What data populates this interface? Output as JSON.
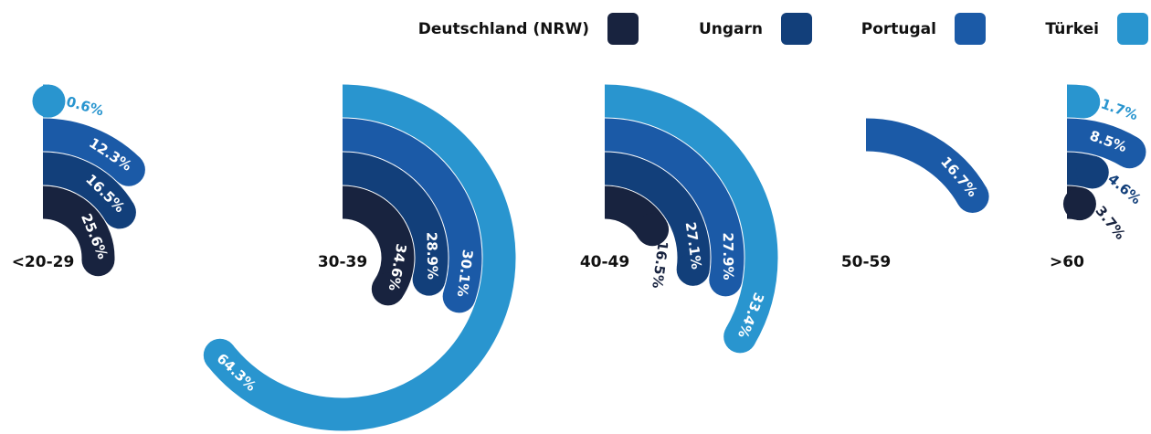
{
  "chart_data": {
    "type": "radial_bar",
    "categories": [
      "<20-29",
      "30-39",
      "40-49",
      "50-59",
      ">60"
    ],
    "series": [
      {
        "name": "Deutschland (NRW)",
        "color": "#18233f",
        "values": [
          25.6,
          34.6,
          16.5,
          null,
          3.7
        ],
        "value_labels": [
          "25.6%",
          "34.6%",
          "16.5%",
          null,
          "3.7%"
        ]
      },
      {
        "name": "Ungarn",
        "color": "#123f7a",
        "values": [
          16.5,
          28.9,
          27.1,
          null,
          4.6
        ],
        "value_labels": [
          "16.5%",
          "28.9%",
          "27.1%",
          null,
          "4.6%"
        ]
      },
      {
        "name": "Portugal",
        "color": "#1b5aa7",
        "values": [
          12.3,
          30.1,
          27.9,
          16.7,
          8.5
        ],
        "value_labels": [
          "12.3%",
          "30.1%",
          "27.9%",
          "16.7%",
          "8.5%"
        ]
      },
      {
        "name": "Türkei",
        "color": "#2995cf",
        "values": [
          0.6,
          64.3,
          33.4,
          null,
          1.7
        ],
        "value_labels": [
          "0.6%",
          "64.3%",
          "33.4%",
          null,
          "1.7%"
        ]
      }
    ],
    "legend": "top-right"
  }
}
